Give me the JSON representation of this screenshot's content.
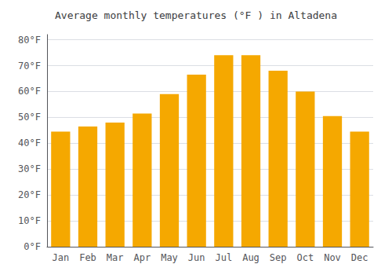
{
  "chart_data": {
    "type": "bar",
    "title": "Average monthly temperatures (°F ) in Altadena",
    "categories": [
      "Jan",
      "Feb",
      "Mar",
      "Apr",
      "May",
      "Jun",
      "Jul",
      "Aug",
      "Sep",
      "Oct",
      "Nov",
      "Dec"
    ],
    "values": [
      44.5,
      46.5,
      48,
      51.5,
      59,
      66.5,
      74,
      74,
      68,
      60,
      50.5,
      44.5
    ],
    "color": "#F5A800",
    "ylim": [
      0,
      82
    ],
    "yticks": [
      {
        "value": 0,
        "label": "0°F"
      },
      {
        "value": 10,
        "label": "10°F"
      },
      {
        "value": 20,
        "label": "20°F"
      },
      {
        "value": 30,
        "label": "30°F"
      },
      {
        "value": 40,
        "label": "40°F"
      },
      {
        "value": 50,
        "label": "50°F"
      },
      {
        "value": 60,
        "label": "60°F"
      },
      {
        "value": 70,
        "label": "70°F"
      },
      {
        "value": 80,
        "label": "80°F"
      }
    ],
    "grid": true
  }
}
